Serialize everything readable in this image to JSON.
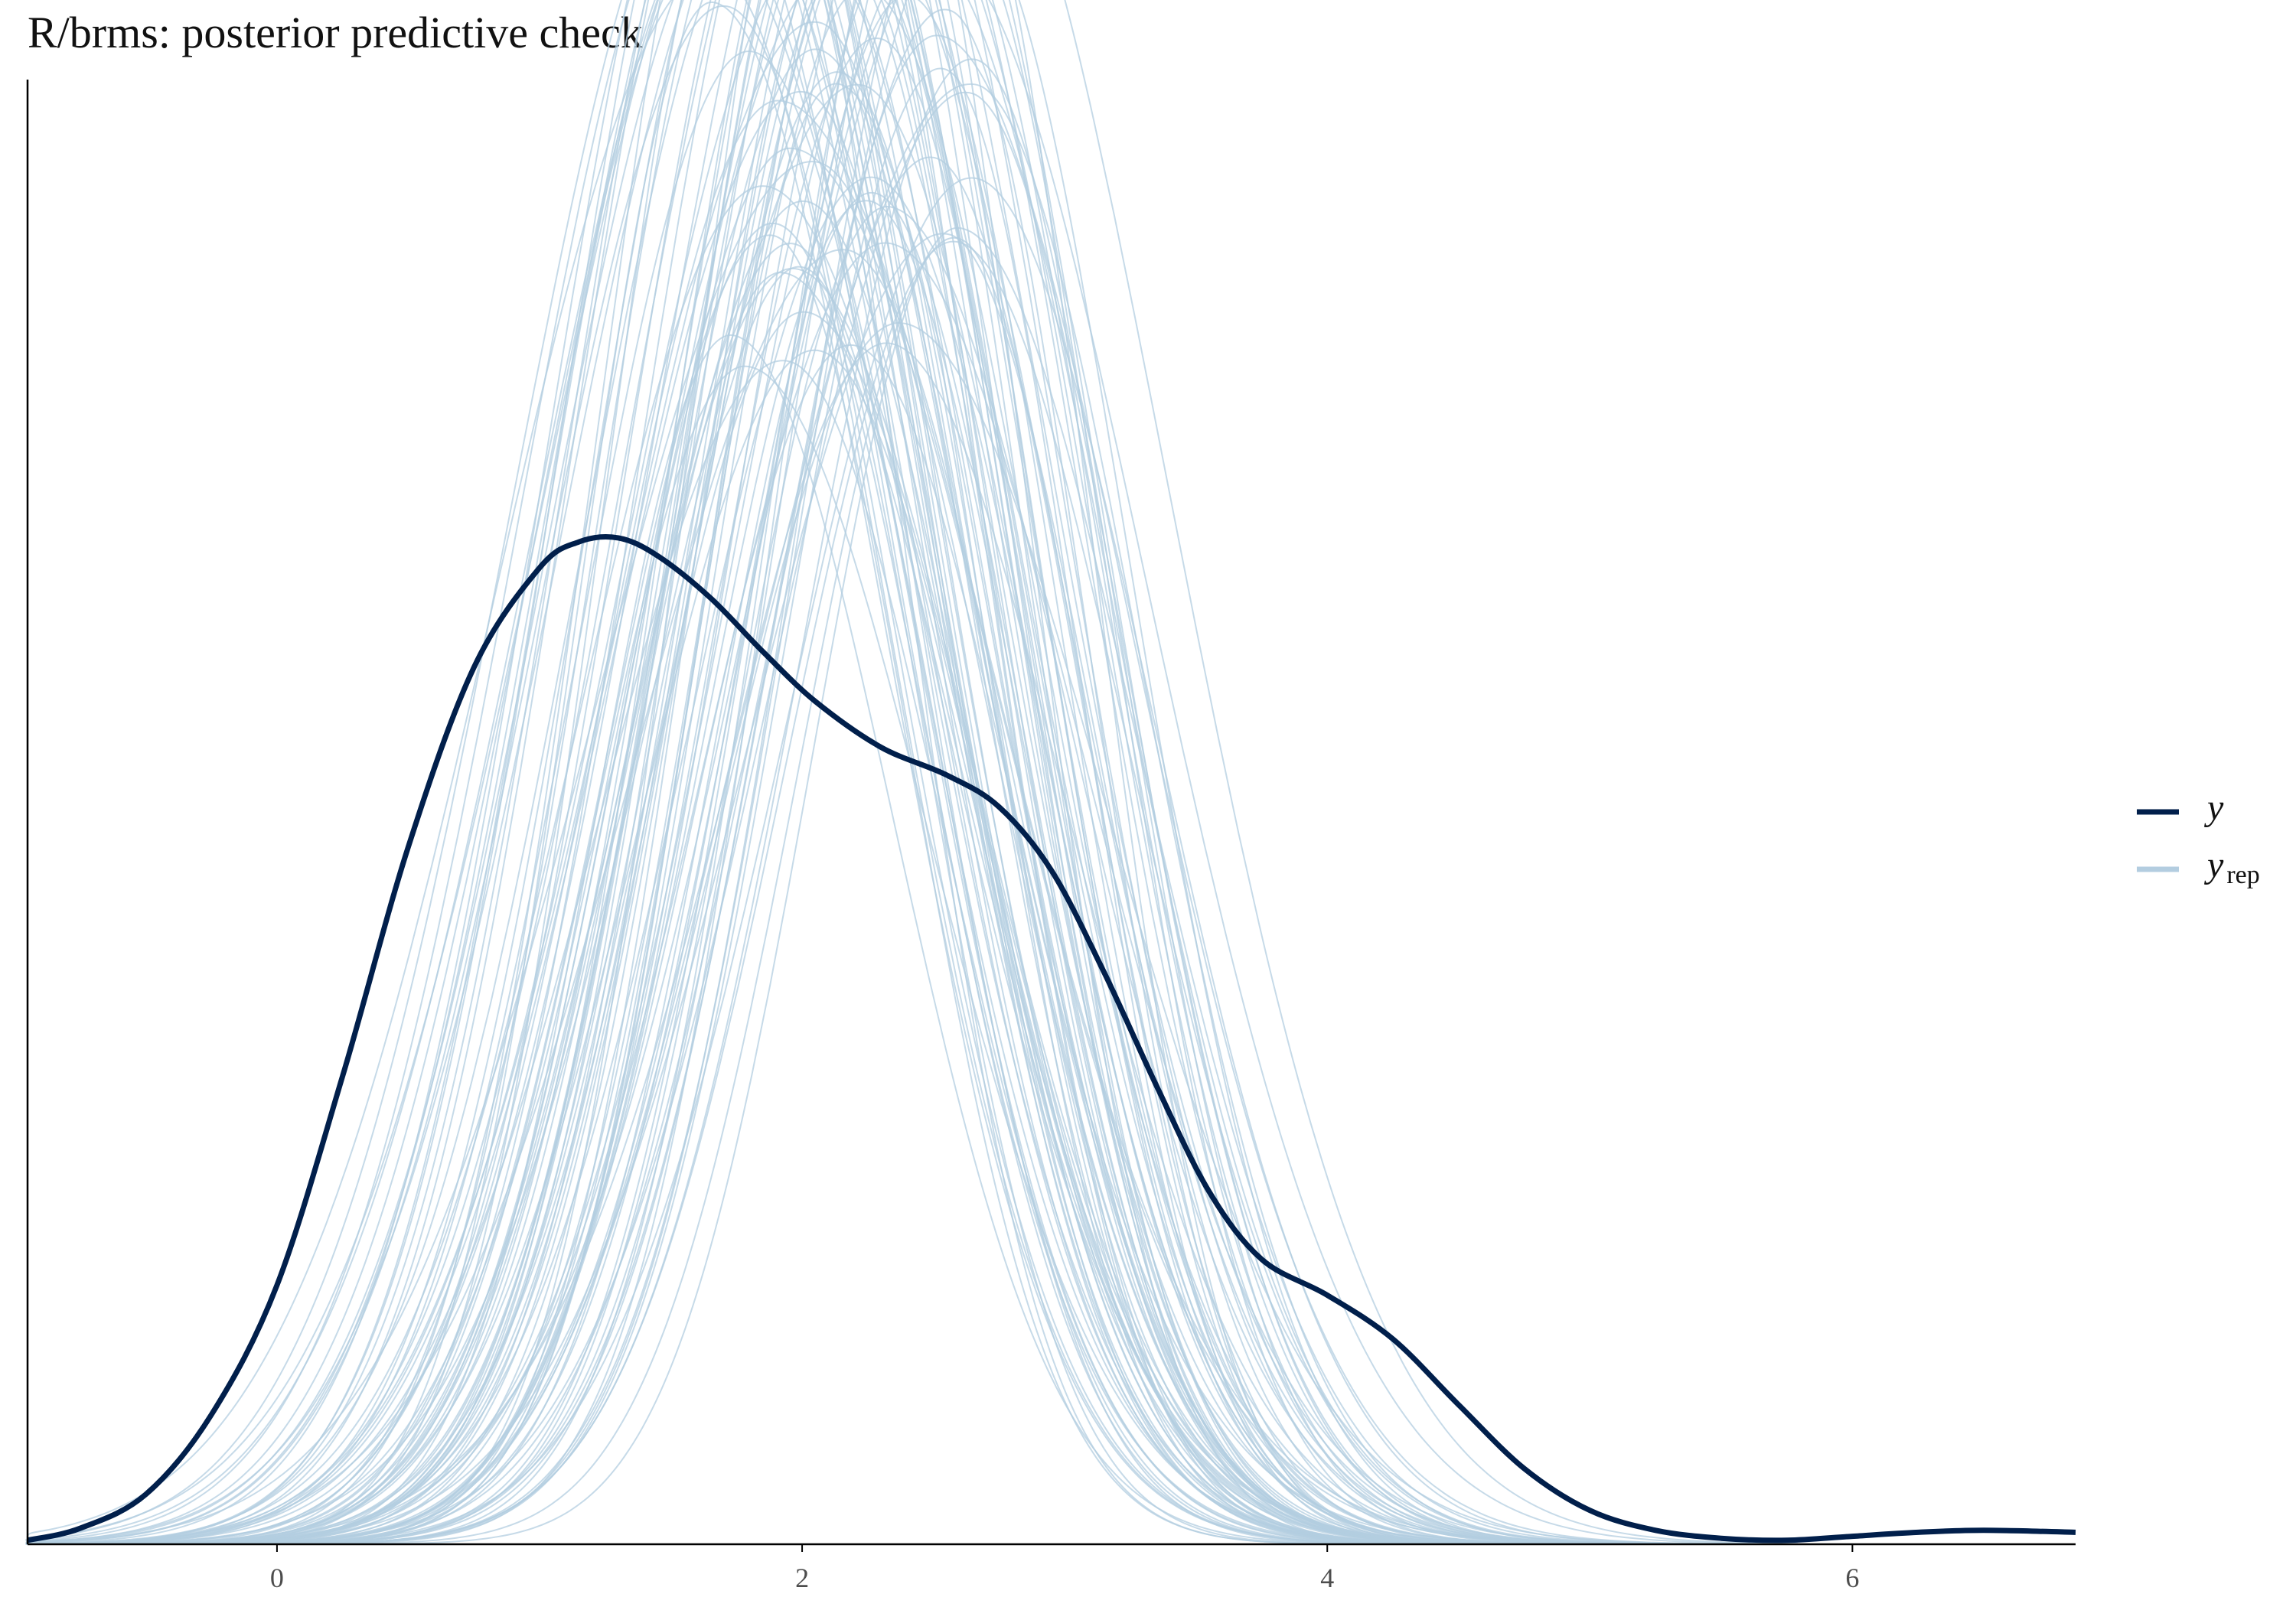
{
  "chart_data": {
    "type": "line",
    "title": "R/brms: posterior predictive check",
    "xlabel": "",
    "ylabel": "",
    "xlim": [
      -0.95,
      6.85
    ],
    "ylim": [
      0,
      0.735
    ],
    "x_ticks": [
      0,
      2,
      4,
      6
    ],
    "x_tick_labels": [
      "0",
      "2",
      "4",
      "6"
    ],
    "y_ticks_shown": false,
    "grid": false,
    "legend_position": "right",
    "colors": {
      "y": "#011f4b",
      "yrep": "#b3cde0"
    },
    "series": [
      {
        "name": "y",
        "x": [
          -0.95,
          -0.75,
          -0.5,
          -0.25,
          0.0,
          0.25,
          0.5,
          0.75,
          1.0,
          1.15,
          1.3,
          1.45,
          1.65,
          1.85,
          2.05,
          2.3,
          2.55,
          2.75,
          2.95,
          3.15,
          3.35,
          3.55,
          3.75,
          4.0,
          4.25,
          4.5,
          4.75,
          5.0,
          5.25,
          5.5,
          5.75,
          6.0,
          6.25,
          6.5,
          6.85
        ],
        "values": [
          0.002,
          0.008,
          0.025,
          0.065,
          0.13,
          0.235,
          0.35,
          0.44,
          0.49,
          0.503,
          0.505,
          0.496,
          0.475,
          0.448,
          0.423,
          0.4,
          0.386,
          0.37,
          0.338,
          0.287,
          0.23,
          0.177,
          0.143,
          0.125,
          0.103,
          0.07,
          0.038,
          0.017,
          0.007,
          0.003,
          0.002,
          0.004,
          0.006,
          0.007,
          0.006
        ]
      },
      {
        "name": "y_rep",
        "label_main": "y",
        "label_sub": "rep",
        "draws": 100,
        "approx_peak_location_range": [
          1.6,
          2.65
        ],
        "approx_peak_height_range": [
          0.59,
          0.92
        ],
        "approx_sd_range": [
          0.55,
          0.75
        ]
      }
    ]
  }
}
